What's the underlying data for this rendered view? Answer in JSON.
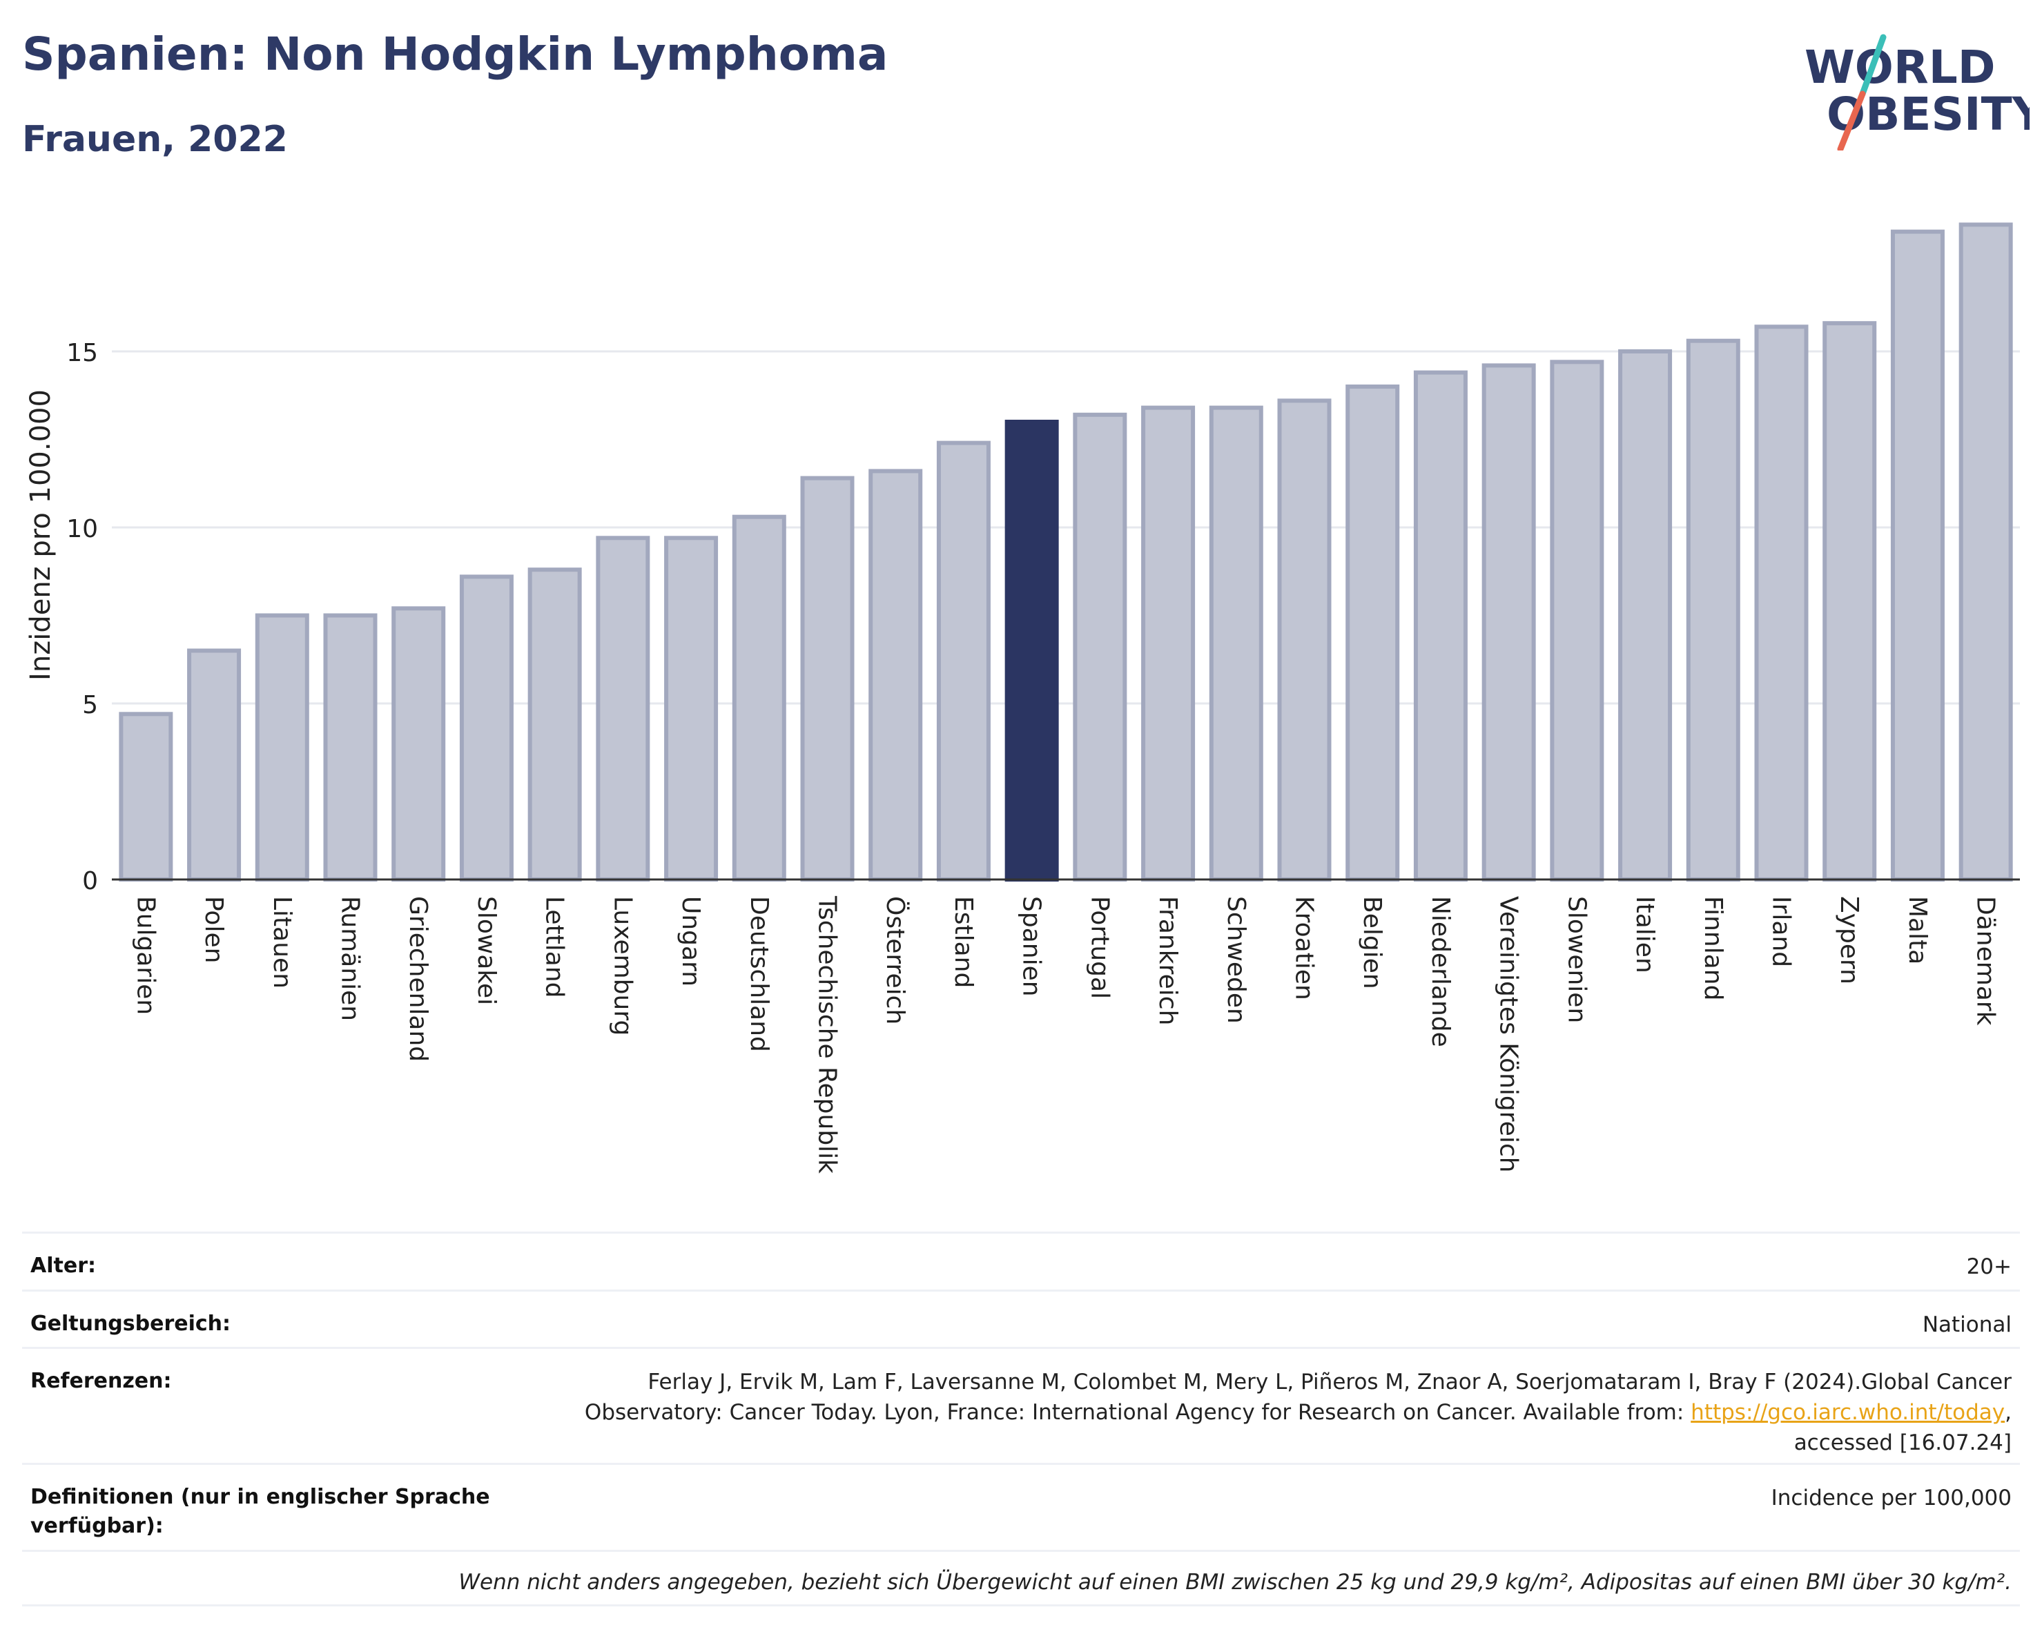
{
  "header": {
    "title": "Spanien: Non Hodgkin Lymphoma",
    "subtitle": "Frauen, 2022"
  },
  "logo": {
    "line1": "WORLD",
    "line2": "OBESITY",
    "colors": {
      "text": "#2e3a66",
      "slash_top": "#3bbfb8",
      "slash_bottom": "#e8664f"
    }
  },
  "chart_data": {
    "type": "bar",
    "ylabel": "Inzidenz pro 100.000",
    "ylim": [
      0,
      19.5
    ],
    "yticks": [
      0,
      5,
      10,
      15
    ],
    "grid": true,
    "highlight": "Spanien",
    "colors": {
      "bar": "#c1c5d3",
      "bar_edge": "#a2a8be",
      "highlight": "#2b3562"
    },
    "categories": [
      "Bulgarien",
      "Polen",
      "Litauen",
      "Rumänien",
      "Griechenland",
      "Slowakei",
      "Lettland",
      "Luxemburg",
      "Ungarn",
      "Deutschland",
      "Tschechische Republik",
      "Österreich",
      "Estland",
      "Spanien",
      "Portugal",
      "Frankreich",
      "Schweden",
      "Kroatien",
      "Belgien",
      "Niederlande",
      "Vereinigtes Königreich",
      "Slowenien",
      "Italien",
      "Finnland",
      "Irland",
      "Zypern",
      "Malta",
      "Dänemark"
    ],
    "values": [
      4.7,
      6.5,
      7.5,
      7.5,
      7.7,
      8.6,
      8.8,
      9.7,
      9.7,
      10.3,
      11.4,
      11.6,
      12.4,
      13.0,
      13.2,
      13.4,
      13.4,
      13.6,
      14.0,
      14.4,
      14.6,
      14.7,
      15.0,
      15.3,
      15.7,
      15.8,
      18.4,
      18.6
    ]
  },
  "meta": {
    "age_label": "Alter:",
    "age_value": "20+",
    "scope_label": "Geltungsbereich:",
    "scope_value": "National",
    "ref_label": "Referenzen:",
    "ref_text_1": "Ferlay J, Ervik M, Lam F, Laversanne M, Colombet M, Mery L, Piñeros M, Znaor A, Soerjomataram I, Bray F (2024).Global Cancer Observatory: Cancer Today. Lyon, France: International Agency for Research on Cancer. Available from: ",
    "ref_link": "https://gco.iarc.who.int/today",
    "ref_text_2": ", accessed [16.07.24]",
    "def_label": "Definitionen (nur in englischer Sprache verfügbar):",
    "def_value": "Incidence per 100,000",
    "footnote": "Wenn nicht anders angegeben, bezieht sich Übergewicht auf einen BMI zwischen 25 kg und 29,9 kg/m², Adipositas auf einen BMI über 30 kg/m²."
  }
}
